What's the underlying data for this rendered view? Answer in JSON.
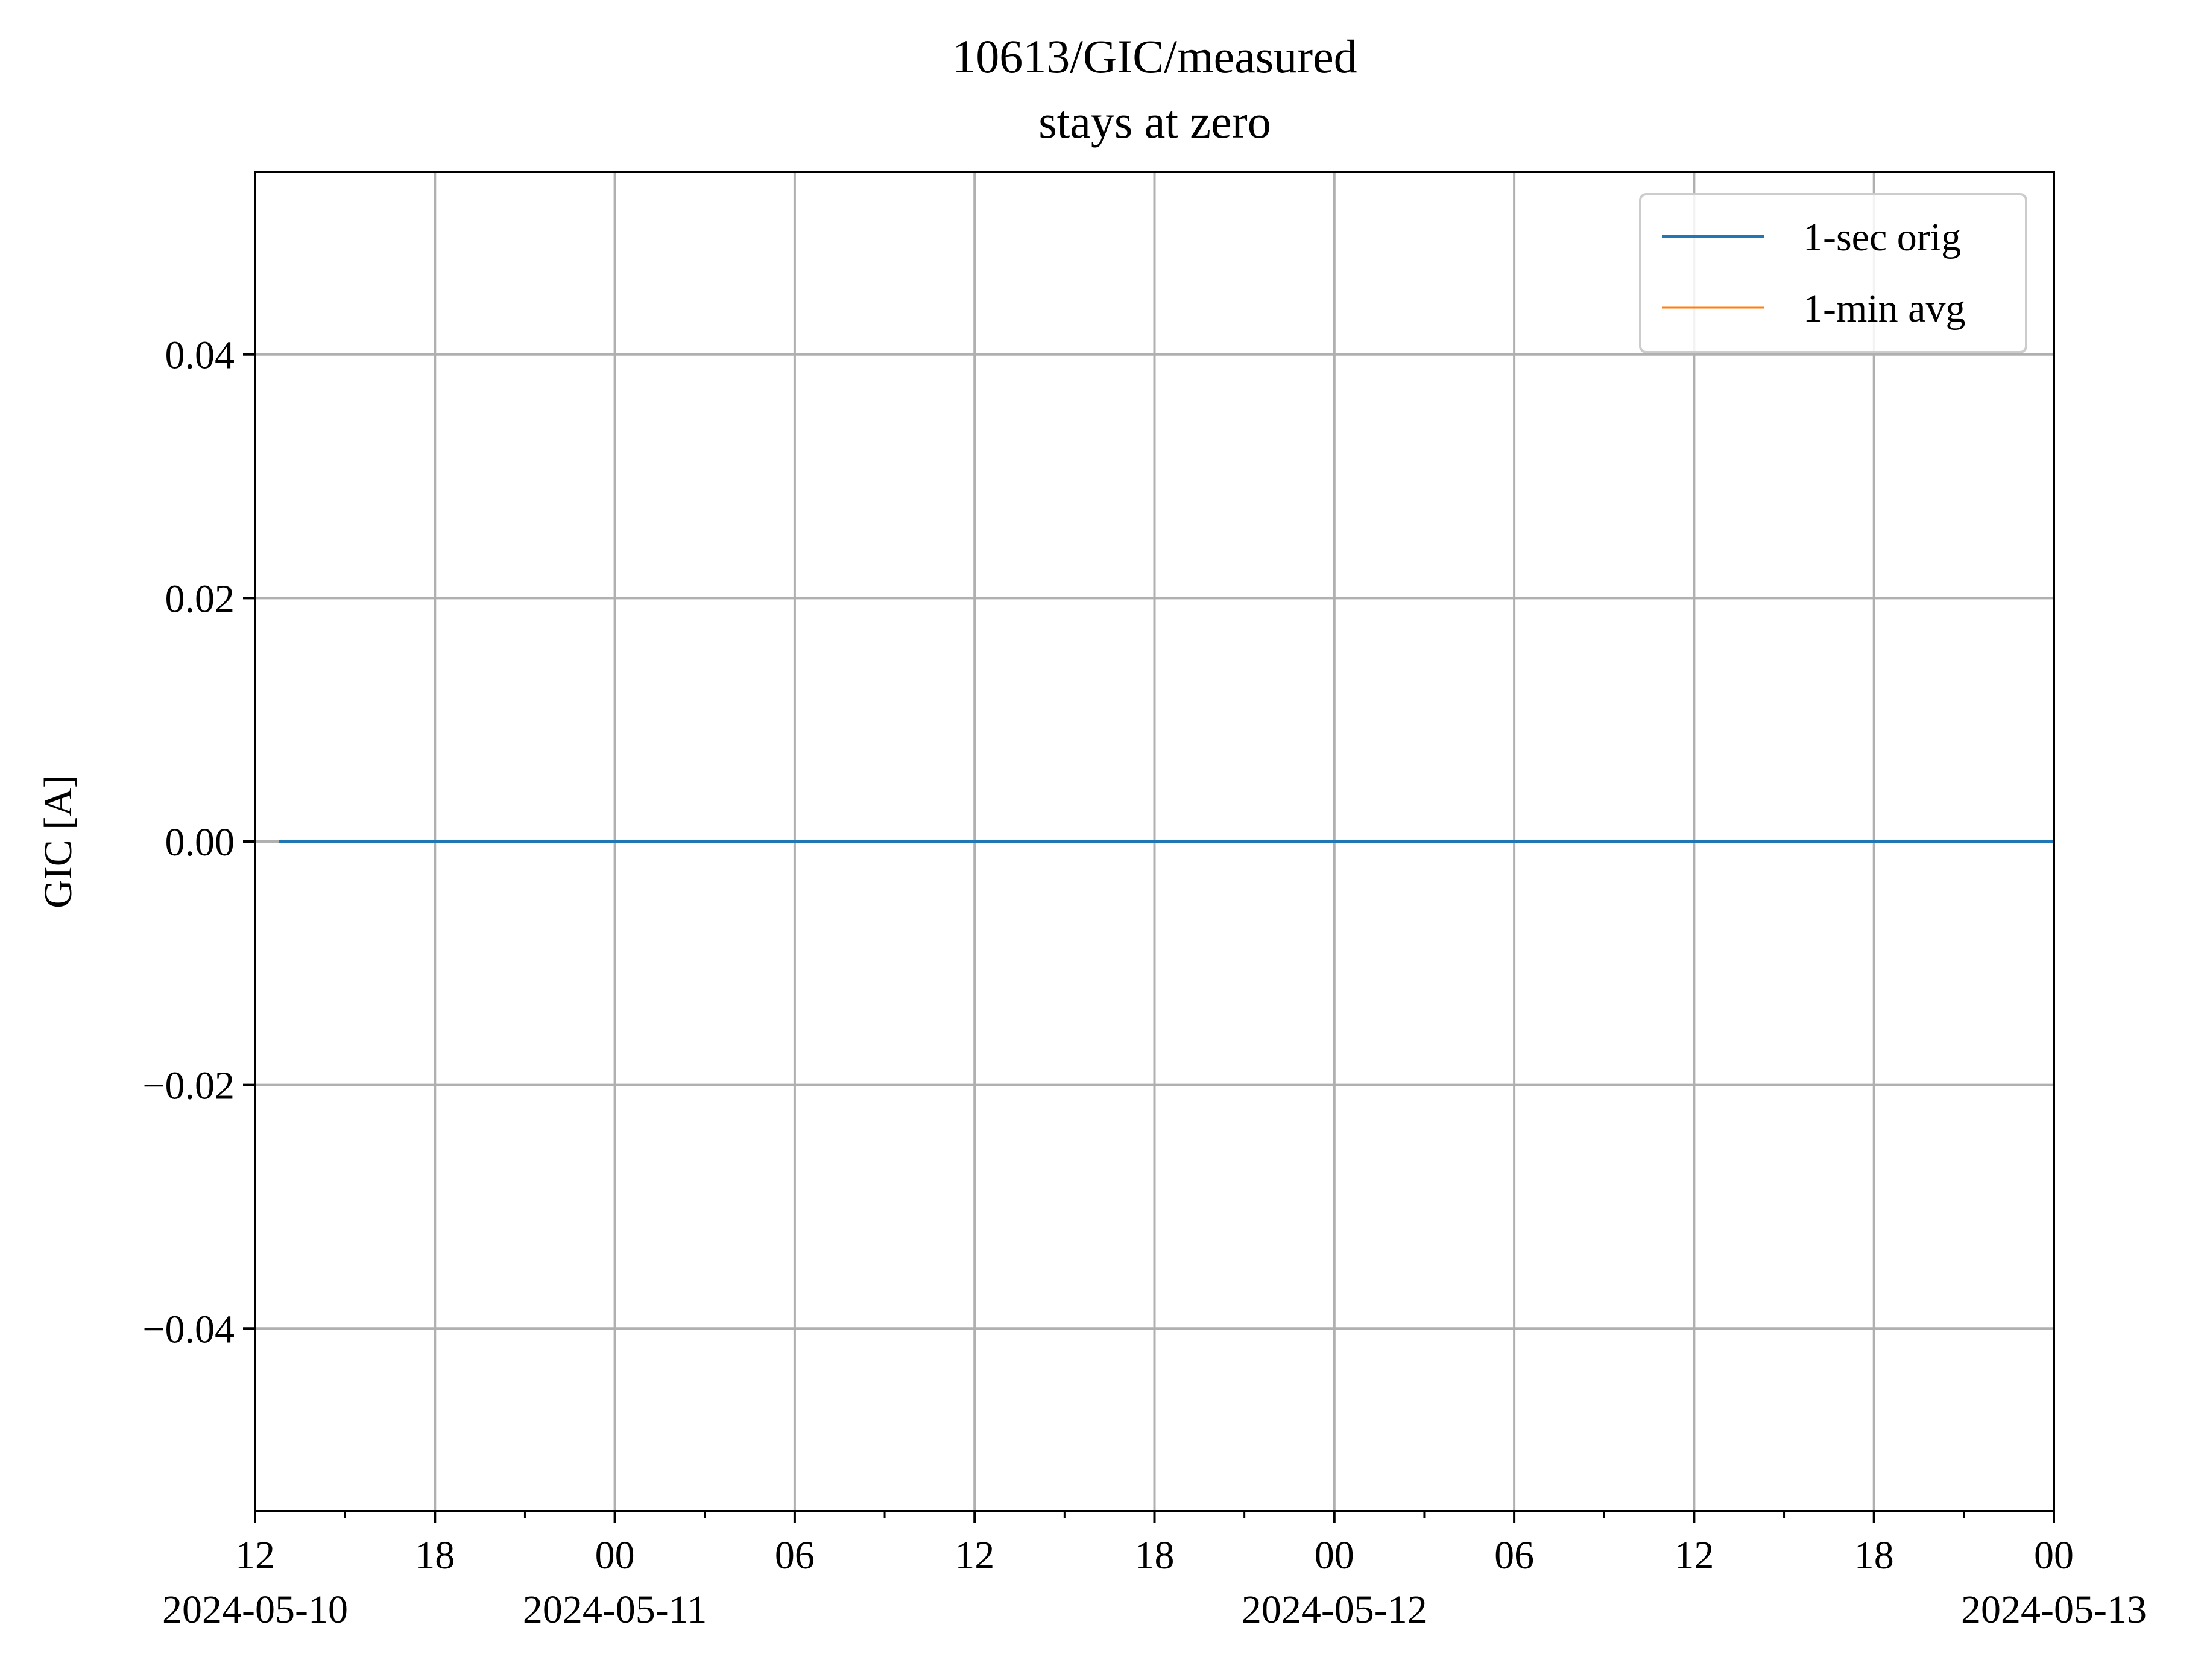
{
  "chart_data": {
    "type": "line",
    "title": "10613/GIC/measured",
    "subtitle": "stays at zero",
    "xlabel": "",
    "ylabel": "GIC [A]",
    "xlim": [
      "2024-05-10 12:00",
      "2024-05-13 00:00"
    ],
    "ylim": [
      -0.055,
      0.055
    ],
    "grid": true,
    "legend_position": "top-right",
    "x_ticks": [
      {
        "time": "2024-05-10 12:00",
        "label": "12",
        "date_label": "2024-05-10"
      },
      {
        "time": "2024-05-10 18:00",
        "label": "18",
        "date_label": ""
      },
      {
        "time": "2024-05-11 00:00",
        "label": "00",
        "date_label": "2024-05-11"
      },
      {
        "time": "2024-05-11 06:00",
        "label": "06",
        "date_label": ""
      },
      {
        "time": "2024-05-11 12:00",
        "label": "12",
        "date_label": ""
      },
      {
        "time": "2024-05-11 18:00",
        "label": "18",
        "date_label": ""
      },
      {
        "time": "2024-05-12 00:00",
        "label": "00",
        "date_label": "2024-05-12"
      },
      {
        "time": "2024-05-12 06:00",
        "label": "06",
        "date_label": ""
      },
      {
        "time": "2024-05-12 12:00",
        "label": "12",
        "date_label": ""
      },
      {
        "time": "2024-05-12 18:00",
        "label": "18",
        "date_label": ""
      },
      {
        "time": "2024-05-13 00:00",
        "label": "00",
        "date_label": "2024-05-13"
      }
    ],
    "x_minor_ticks": [
      "2024-05-10 15:00",
      "2024-05-10 21:00",
      "2024-05-11 03:00",
      "2024-05-11 09:00",
      "2024-05-11 15:00",
      "2024-05-11 21:00",
      "2024-05-12 03:00",
      "2024-05-12 09:00",
      "2024-05-12 15:00",
      "2024-05-12 21:00"
    ],
    "y_ticks": [
      {
        "value": 0.04,
        "label": "0.04"
      },
      {
        "value": 0.02,
        "label": "0.02"
      },
      {
        "value": 0.0,
        "label": "0.00"
      },
      {
        "value": -0.02,
        "label": "−0.02"
      },
      {
        "value": -0.04,
        "label": "−0.04"
      }
    ],
    "series": [
      {
        "name": "1-sec orig",
        "color": "#1f77b4",
        "points": [
          {
            "x": "2024-05-10 12:48",
            "y": 0.0
          },
          {
            "x": "2024-05-13 00:00",
            "y": 0.0
          }
        ]
      },
      {
        "name": "1-min avg",
        "color": "#ff7f0e",
        "points": []
      }
    ]
  }
}
